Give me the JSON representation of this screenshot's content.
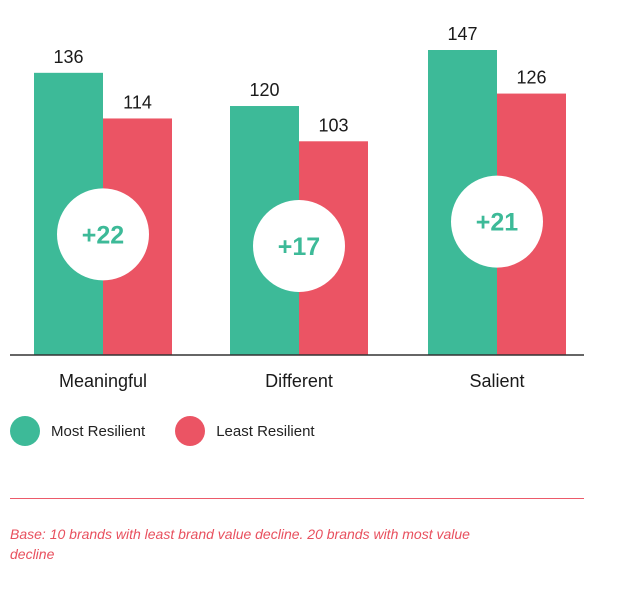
{
  "chart_data": {
    "type": "bar",
    "categories": [
      "Meaningful",
      "Different",
      "Salient"
    ],
    "series": [
      {
        "name": "Most Resilient",
        "values": [
          136,
          120,
          147
        ],
        "color": "#3dba98"
      },
      {
        "name": "Least Resilient",
        "values": [
          114,
          103,
          126
        ],
        "color": "#eb5464"
      }
    ],
    "differences": [
      "+22",
      "+17",
      "+21"
    ],
    "ylim": [
      0,
      147
    ],
    "grid": false,
    "legend": "bottom-left"
  },
  "footnote": "Base: 10 brands with least brand value decline. 20 brands with most value decline"
}
